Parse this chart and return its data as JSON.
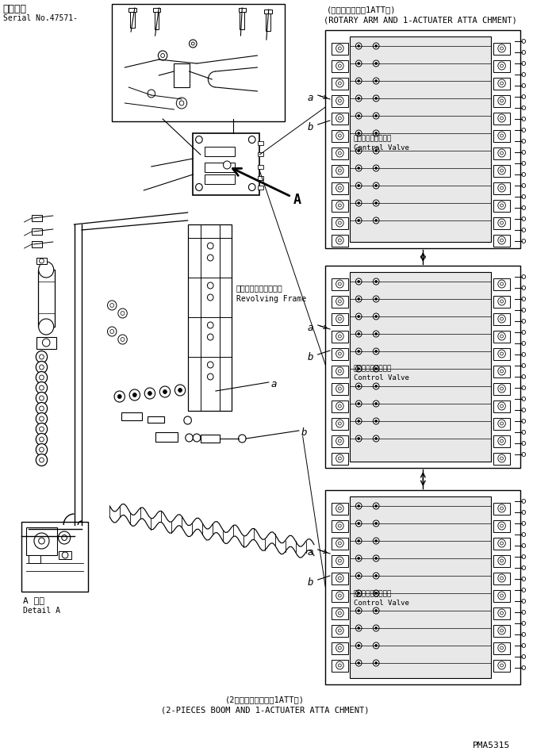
{
  "bg_color": "#ffffff",
  "line_color": "#000000",
  "fig_width": 7.01,
  "fig_height": 9.52,
  "title_top_left": "適用号機",
  "serial_text": "Serial No.47571-",
  "top_right_label1": "(回転アーム及と1ATT用)",
  "top_right_label2": "(ROTARY ARM AND 1-ACTUATER ATTA CHMENT)",
  "bottom_label1": "(2ピースブーム及と1ATT用)",
  "bottom_label2": "(2-PIECES BOOM AND 1-ACTUATER ATTA CHMENT)",
  "part_number": "PMA5315",
  "revolving_frame_ja": "レボルビングフレーム",
  "revolving_frame_en": "Revolving Frame",
  "control_valve_ja": "コントロールバルブ",
  "control_valve_en": "Control Valve",
  "detail_a_ja": "A 詳細",
  "detail_a_en": "Detail A",
  "arrow_a_label": "A",
  "label_a": "a",
  "label_b": "b"
}
